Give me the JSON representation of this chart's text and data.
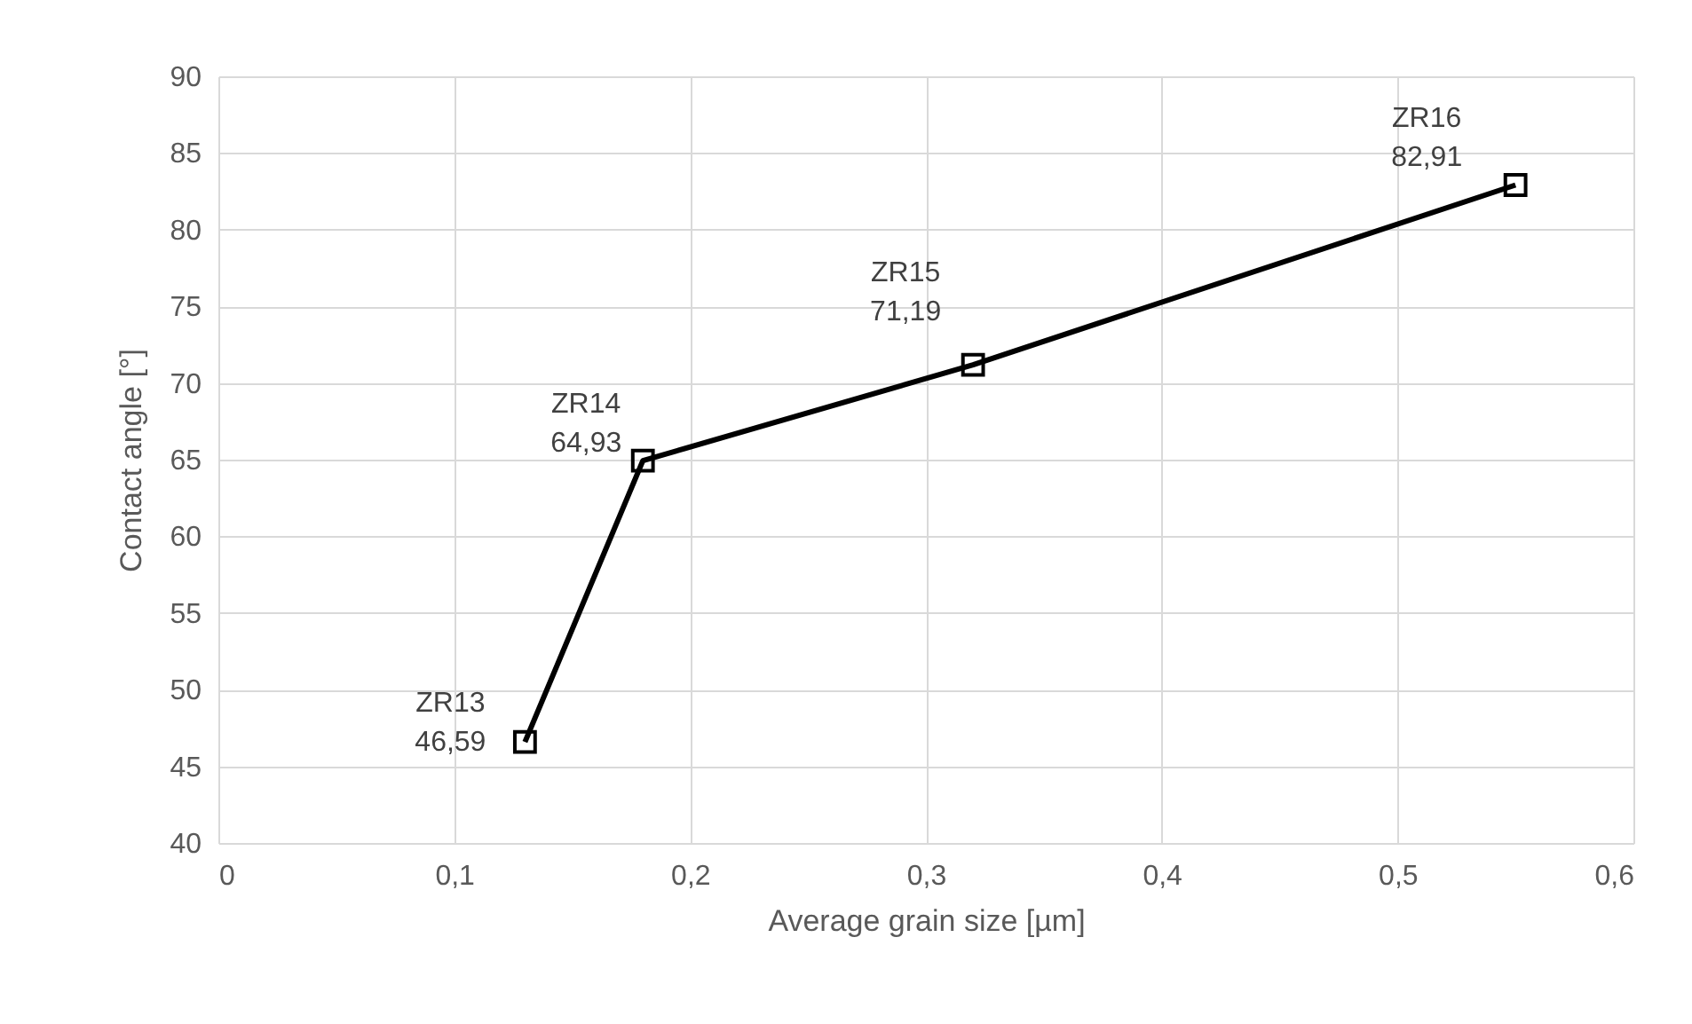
{
  "chart_data": {
    "type": "line",
    "xlabel": "Average grain size [µm]",
    "ylabel": "Contact angle [°]",
    "x": [
      0.13,
      0.18,
      0.32,
      0.55
    ],
    "series": [
      {
        "color": "#000000",
        "values": [
          46.59,
          64.93,
          71.19,
          82.91
        ],
        "value_labels": [
          "46,59",
          "64,93",
          "71,19",
          "82,91"
        ]
      }
    ],
    "annotations": [
      {
        "text": "ZR13",
        "x": 0.13,
        "y": 46.59
      },
      {
        "text": "ZR14",
        "x": 0.18,
        "y": 64.93
      },
      {
        "text": "ZR15",
        "x": 0.32,
        "y": 71.19
      },
      {
        "text": "ZR16",
        "x": 0.55,
        "y": 82.91
      }
    ],
    "xlim": [
      0,
      0.6
    ],
    "xticks": [
      0,
      {
        "value": 0.1,
        "label": "0,1"
      },
      {
        "value": 0.2,
        "label": "0,2"
      },
      {
        "value": 0.3,
        "label": "0,3"
      },
      {
        "value": 0.4,
        "label": "0,4"
      },
      {
        "value": 0.5,
        "label": "0,5"
      },
      {
        "value": 0.6,
        "label": "0,6"
      }
    ],
    "ylim": [
      40,
      90
    ],
    "yticks": [
      40,
      45,
      50,
      55,
      60,
      65,
      70,
      75,
      80,
      85,
      90
    ],
    "grid": true,
    "marker": "square",
    "line_style": "solid"
  }
}
